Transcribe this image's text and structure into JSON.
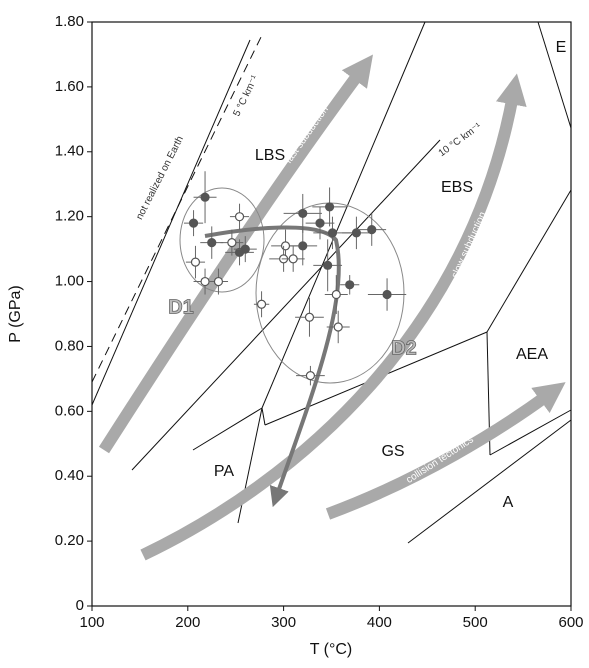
{
  "chart_data": {
    "type": "scatter",
    "x_label": "T (°C)",
    "y_label": "P (GPa)",
    "xlim": [
      100,
      600
    ],
    "xticks": [
      100,
      200,
      300,
      400,
      500,
      600
    ],
    "ylim": [
      0,
      1.8
    ],
    "yticks": [
      0,
      {
        "value": 0.2,
        "label": "0.20"
      },
      {
        "value": 0.4,
        "label": "0.40"
      },
      {
        "value": 0.6,
        "label": "0.60"
      },
      {
        "value": 0.8,
        "label": "0.80"
      },
      {
        "value": 1.0,
        "label": "1.00"
      },
      {
        "value": 1.2,
        "label": "1.20"
      },
      {
        "value": 1.4,
        "label": "1.40"
      },
      {
        "value": 1.6,
        "label": "1.60"
      },
      {
        "value": 1.8,
        "label": "1.80"
      }
    ],
    "series": [
      {
        "marker": "filled",
        "color": "#555555",
        "x": [
          218,
          206,
          225,
          254,
          260,
          320,
          348,
          338,
          351,
          376,
          392,
          320,
          346,
          369,
          408
        ],
        "values": [
          1.26,
          1.18,
          1.12,
          1.09,
          1.1,
          1.21,
          1.23,
          1.18,
          1.15,
          1.15,
          1.16,
          1.11,
          1.05,
          0.99,
          0.96
        ],
        "xerr": [
          12,
          10,
          12,
          15,
          12,
          20,
          18,
          15,
          20,
          15,
          15,
          15,
          15,
          10,
          20
        ],
        "yerr": [
          0.08,
          0.04,
          0.05,
          0.04,
          0.04,
          0.06,
          0.06,
          0.05,
          0.05,
          0.05,
          0.05,
          0.06,
          0.08,
          0.03,
          0.05
        ]
      },
      {
        "marker": "open",
        "color": "#555555",
        "x": [
          254,
          246,
          208,
          218,
          232,
          302,
          300,
          310,
          355,
          327,
          357,
          277,
          328
        ],
        "values": [
          1.2,
          1.12,
          1.06,
          1.0,
          1.0,
          1.11,
          1.07,
          1.07,
          0.96,
          0.89,
          0.86,
          0.93,
          0.71
        ],
        "xerr": [
          10,
          12,
          10,
          12,
          10,
          15,
          15,
          12,
          12,
          15,
          12,
          8,
          15
        ],
        "yerr": [
          0.04,
          0.04,
          0.05,
          0.04,
          0.04,
          0.05,
          0.04,
          0.04,
          0.06,
          0.06,
          0.05,
          0.04,
          0.03
        ]
      }
    ],
    "annotations": [
      "LBS",
      "EBS",
      "AEA",
      "GS",
      "PA",
      "A",
      "E",
      "D1",
      "D2",
      "not realized on Earth",
      "5 °C km⁻¹",
      "10 °C km⁻¹",
      "fast subduction",
      "slow subduction",
      "collision tectonics"
    ]
  }
}
